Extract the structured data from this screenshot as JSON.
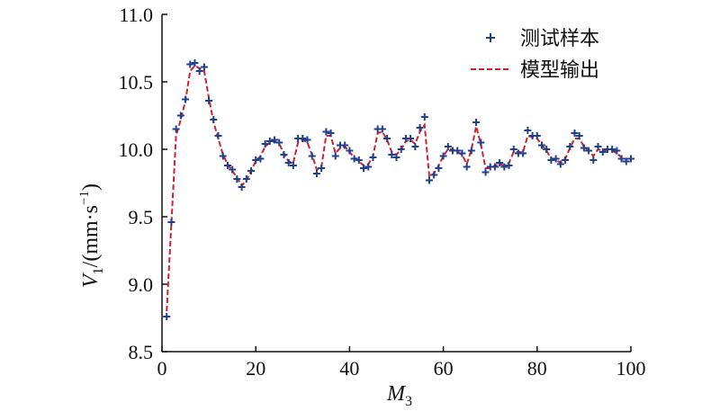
{
  "chart_data": {
    "type": "line",
    "title": "",
    "xlabel_main": "M",
    "xlabel_sub": "3",
    "ylabel_main": "V",
    "ylabel_sub": "1",
    "ylabel_unit": "/(mm·s",
    "ylabel_unit_sup": "−1",
    "ylabel_unit_close": ")",
    "xlim": [
      0,
      100
    ],
    "ylim": [
      8.5,
      11.0
    ],
    "xticks": [
      0,
      20,
      40,
      60,
      80,
      100
    ],
    "xtick_labels": [
      "0",
      "20",
      "40",
      "60",
      "80",
      "100"
    ],
    "yticks": [
      8.5,
      9.0,
      9.5,
      10.0,
      10.5,
      11.0
    ],
    "ytick_labels": [
      "8.5",
      "9.0",
      "9.5",
      "10.0",
      "10.5",
      "11.0"
    ],
    "grid": false,
    "legend_position": "top-right",
    "x": [
      1,
      2,
      3,
      4,
      5,
      6,
      7,
      8,
      9,
      10,
      11,
      12,
      13,
      14,
      15,
      16,
      17,
      18,
      19,
      20,
      21,
      22,
      23,
      24,
      25,
      26,
      27,
      28,
      29,
      30,
      31,
      32,
      33,
      34,
      35,
      36,
      37,
      38,
      39,
      40,
      41,
      42,
      43,
      44,
      45,
      46,
      47,
      48,
      49,
      50,
      51,
      52,
      53,
      54,
      55,
      56,
      57,
      58,
      59,
      60,
      61,
      62,
      63,
      64,
      65,
      66,
      67,
      68,
      69,
      70,
      71,
      72,
      73,
      74,
      75,
      76,
      77,
      78,
      79,
      80,
      81,
      82,
      83,
      84,
      85,
      86,
      87,
      88,
      89,
      90,
      91,
      92,
      93,
      94,
      95,
      96,
      97,
      98,
      99,
      100
    ],
    "series": [
      {
        "name": "测试样本",
        "style": "marker",
        "color": "#1f3f8f",
        "values": [
          8.76,
          9.46,
          10.15,
          10.25,
          10.37,
          10.63,
          10.64,
          10.58,
          10.61,
          10.36,
          10.22,
          10.1,
          9.95,
          9.88,
          9.85,
          9.78,
          9.72,
          9.78,
          9.84,
          9.92,
          9.93,
          10.04,
          10.06,
          10.07,
          10.05,
          9.96,
          9.9,
          9.88,
          10.08,
          10.08,
          10.07,
          9.95,
          9.82,
          9.86,
          10.13,
          10.12,
          9.95,
          10.03,
          10.03,
          9.99,
          9.93,
          9.92,
          9.86,
          9.87,
          9.94,
          10.15,
          10.15,
          10.08,
          9.96,
          9.94,
          10.0,
          10.08,
          10.08,
          10.02,
          10.16,
          10.24,
          9.77,
          9.81,
          9.86,
          9.95,
          10.02,
          9.99,
          9.99,
          9.97,
          9.87,
          9.99,
          10.2,
          10.05,
          9.83,
          9.87,
          9.87,
          9.9,
          9.87,
          9.88,
          10.0,
          9.97,
          9.97,
          10.14,
          10.1,
          10.1,
          10.03,
          10.0,
          9.92,
          9.93,
          9.89,
          9.92,
          10.02,
          10.12,
          10.1,
          10.01,
          9.99,
          9.92,
          10.02,
          9.98,
          10.0,
          10.0,
          9.99,
          9.93,
          9.91,
          9.93
        ]
      },
      {
        "name": "模型输出",
        "style": "dashed-line",
        "color": "#d0202a",
        "values": [
          8.8,
          9.45,
          10.1,
          10.22,
          10.36,
          10.58,
          10.62,
          10.6,
          10.58,
          10.38,
          10.2,
          10.08,
          9.96,
          9.89,
          9.84,
          9.79,
          9.73,
          9.77,
          9.84,
          9.91,
          9.95,
          10.02,
          10.05,
          10.06,
          10.04,
          9.97,
          9.91,
          9.9,
          10.05,
          10.07,
          10.05,
          9.96,
          9.85,
          9.87,
          10.1,
          10.1,
          9.97,
          10.01,
          10.02,
          9.98,
          9.94,
          9.91,
          9.88,
          9.89,
          9.95,
          10.12,
          10.13,
          10.07,
          9.98,
          9.96,
          10.0,
          10.06,
          10.07,
          10.04,
          10.13,
          10.18,
          9.8,
          9.82,
          9.88,
          9.95,
          10.0,
          10.0,
          9.98,
          9.96,
          9.89,
          10.0,
          10.17,
          10.04,
          9.86,
          9.86,
          9.88,
          9.89,
          9.88,
          9.9,
          9.98,
          9.98,
          9.98,
          10.1,
          10.09,
          10.08,
          10.03,
          9.99,
          9.93,
          9.92,
          9.9,
          9.93,
          10.01,
          10.08,
          10.08,
          10.02,
          9.99,
          9.95,
          10.0,
          9.99,
          9.99,
          9.99,
          9.97,
          9.94,
          9.93,
          9.93
        ]
      }
    ]
  }
}
